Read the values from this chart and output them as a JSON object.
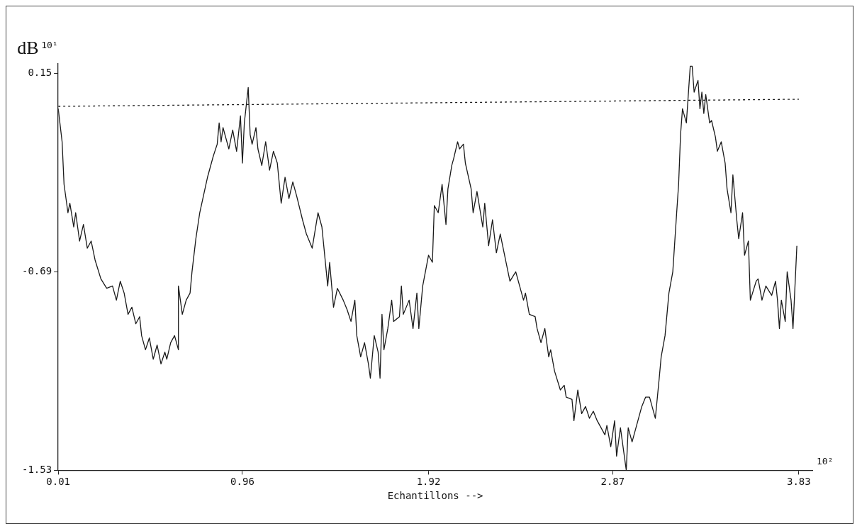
{
  "chart_data": {
    "type": "line",
    "ylabel": "dB",
    "xlabel": "Echantillons -->",
    "annotations": [
      "10¹",
      "10²"
    ],
    "xlim": [
      0.01,
      3.9
    ],
    "xticks": [
      0.01,
      0.96,
      1.92,
      2.87,
      3.83
    ],
    "ylim": [
      -1.53,
      0.19
    ],
    "yticks": [
      -1.53,
      -0.69,
      0.15
    ],
    "grid": false,
    "legend": false,
    "marker": "none",
    "series": [
      {
        "color": "#1a1a1a",
        "line_style": "solid",
        "x": [
          0.01,
          0.03,
          0.04,
          0.06,
          0.07,
          0.09,
          0.1,
          0.12,
          0.14,
          0.16,
          0.18,
          0.2,
          0.23,
          0.26,
          0.29,
          0.31,
          0.33,
          0.35,
          0.37,
          0.39,
          0.41,
          0.43,
          0.44,
          0.46,
          0.48,
          0.5,
          0.52,
          0.54,
          0.56,
          0.57,
          0.59,
          0.61,
          0.63,
          0.63,
          0.65,
          0.67,
          0.69,
          0.7,
          0.72,
          0.74,
          0.78,
          0.81,
          0.83,
          0.84,
          0.85,
          0.86,
          0.89,
          0.91,
          0.93,
          0.95,
          0.96,
          0.97,
          0.99,
          1.0,
          1.01,
          1.03,
          1.04,
          1.06,
          1.08,
          1.1,
          1.12,
          1.14,
          1.16,
          1.18,
          1.2,
          1.22,
          1.24,
          1.27,
          1.29,
          1.32,
          1.35,
          1.37,
          1.4,
          1.41,
          1.43,
          1.45,
          1.48,
          1.5,
          1.52,
          1.54,
          1.55,
          1.57,
          1.59,
          1.61,
          1.62,
          1.64,
          1.66,
          1.67,
          1.68,
          1.69,
          1.71,
          1.73,
          1.74,
          1.77,
          1.78,
          1.79,
          1.82,
          1.84,
          1.86,
          1.87,
          1.89,
          1.92,
          1.94,
          1.95,
          1.97,
          1.99,
          2.01,
          2.02,
          2.04,
          2.05,
          2.07,
          2.08,
          2.1,
          2.11,
          2.14,
          2.15,
          2.17,
          2.2,
          2.21,
          2.23,
          2.25,
          2.27,
          2.29,
          2.32,
          2.34,
          2.37,
          2.39,
          2.41,
          2.42,
          2.44,
          2.47,
          2.48,
          2.5,
          2.52,
          2.54,
          2.55,
          2.57,
          2.6,
          2.62,
          2.63,
          2.66,
          2.67,
          2.69,
          2.71,
          2.73,
          2.75,
          2.77,
          2.79,
          2.81,
          2.83,
          2.84,
          2.86,
          2.88,
          2.89,
          2.91,
          2.94,
          2.95,
          2.97,
          3.0,
          3.02,
          3.04,
          3.06,
          3.09,
          3.11,
          3.12,
          3.14,
          3.16,
          3.18,
          3.2,
          3.21,
          3.22,
          3.23,
          3.25,
          3.26,
          3.27,
          3.28,
          3.29,
          3.31,
          3.32,
          3.33,
          3.34,
          3.35,
          3.37,
          3.38,
          3.4,
          3.41,
          3.43,
          3.45,
          3.46,
          3.48,
          3.49,
          3.51,
          3.52,
          3.54,
          3.55,
          3.57,
          3.58,
          3.61,
          3.62,
          3.64,
          3.66,
          3.69,
          3.71,
          3.72,
          3.73,
          3.74,
          3.76,
          3.77,
          3.79,
          3.8,
          3.82
        ],
        "values": [
          0.0,
          -0.14,
          -0.32,
          -0.44,
          -0.4,
          -0.5,
          -0.44,
          -0.56,
          -0.49,
          -0.59,
          -0.56,
          -0.64,
          -0.72,
          -0.76,
          -0.75,
          -0.81,
          -0.73,
          -0.78,
          -0.87,
          -0.84,
          -0.91,
          -0.88,
          -0.96,
          -1.02,
          -0.97,
          -1.06,
          -1.0,
          -1.08,
          -1.03,
          -1.06,
          -0.99,
          -0.96,
          -1.02,
          -0.75,
          -0.87,
          -0.81,
          -0.78,
          -0.69,
          -0.55,
          -0.44,
          -0.29,
          -0.2,
          -0.15,
          -0.06,
          -0.14,
          -0.08,
          -0.17,
          -0.09,
          -0.18,
          -0.03,
          -0.23,
          -0.06,
          0.09,
          -0.11,
          -0.15,
          -0.08,
          -0.17,
          -0.24,
          -0.14,
          -0.26,
          -0.18,
          -0.23,
          -0.4,
          -0.29,
          -0.38,
          -0.31,
          -0.37,
          -0.47,
          -0.53,
          -0.59,
          -0.44,
          -0.5,
          -0.75,
          -0.65,
          -0.84,
          -0.76,
          -0.81,
          -0.85,
          -0.9,
          -0.81,
          -0.96,
          -1.05,
          -0.99,
          -1.08,
          -1.14,
          -0.96,
          -1.03,
          -1.14,
          -0.87,
          -1.02,
          -0.93,
          -0.81,
          -0.9,
          -0.88,
          -0.75,
          -0.87,
          -0.81,
          -0.93,
          -0.78,
          -0.93,
          -0.75,
          -0.62,
          -0.65,
          -0.41,
          -0.44,
          -0.32,
          -0.49,
          -0.34,
          -0.24,
          -0.21,
          -0.14,
          -0.17,
          -0.15,
          -0.23,
          -0.34,
          -0.44,
          -0.35,
          -0.5,
          -0.4,
          -0.58,
          -0.47,
          -0.61,
          -0.53,
          -0.65,
          -0.73,
          -0.69,
          -0.75,
          -0.81,
          -0.78,
          -0.87,
          -0.88,
          -0.93,
          -0.99,
          -0.93,
          -1.05,
          -1.02,
          -1.11,
          -1.19,
          -1.17,
          -1.22,
          -1.23,
          -1.32,
          -1.19,
          -1.29,
          -1.26,
          -1.31,
          -1.28,
          -1.32,
          -1.35,
          -1.38,
          -1.34,
          -1.43,
          -1.32,
          -1.47,
          -1.35,
          -1.53,
          -1.35,
          -1.41,
          -1.32,
          -1.26,
          -1.22,
          -1.22,
          -1.31,
          -1.14,
          -1.05,
          -0.96,
          -0.78,
          -0.69,
          -0.44,
          -0.32,
          -0.11,
          0.0,
          -0.06,
          0.06,
          0.18,
          0.18,
          0.07,
          0.12,
          0.0,
          0.07,
          -0.02,
          0.06,
          -0.06,
          -0.05,
          -0.12,
          -0.18,
          -0.14,
          -0.23,
          -0.34,
          -0.44,
          -0.28,
          -0.47,
          -0.55,
          -0.44,
          -0.62,
          -0.56,
          -0.81,
          -0.73,
          -0.72,
          -0.81,
          -0.75,
          -0.79,
          -0.73,
          -0.81,
          -0.93,
          -0.81,
          -0.9,
          -0.69,
          -0.81,
          -0.93,
          -0.58
        ]
      },
      {
        "color": "#1a1a1a",
        "line_style": "dashed",
        "x": [
          0.01,
          3.83
        ],
        "values": [
          0.01,
          0.04
        ]
      }
    ]
  }
}
